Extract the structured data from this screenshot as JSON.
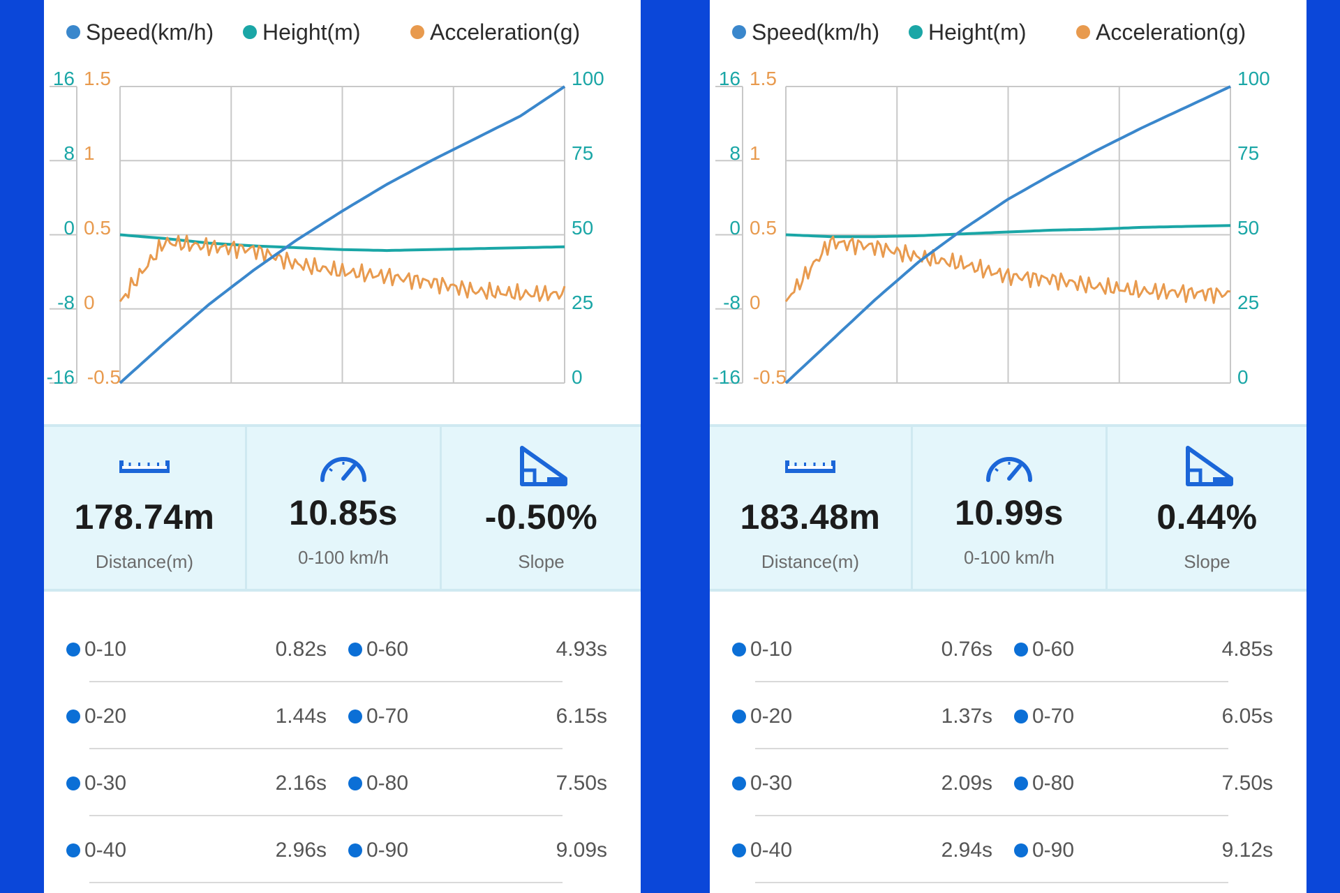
{
  "colors": {
    "background": "#0b47d9",
    "speed": "#3a87cc",
    "height": "#1aa6a6",
    "acceleration": "#e89a4e",
    "stats_bg": "#e4f6fb",
    "icon_blue": "#1b66d8",
    "split_dot": "#0b6fd6"
  },
  "panels": [
    {
      "legend": [
        {
          "label": "Speed(km/h)",
          "color": "#3a87cc"
        },
        {
          "label": "Height(m)",
          "color": "#1aa6a6"
        },
        {
          "label": "Acceleration(g)",
          "color": "#e89a4e"
        }
      ],
      "stats": [
        {
          "icon": "ruler-icon",
          "value": "178.74m",
          "label": "Distance(m)"
        },
        {
          "icon": "speedometer-icon",
          "value": "10.85s",
          "label": "0-100 km/h"
        },
        {
          "icon": "slope-icon",
          "value": "-0.50%",
          "label": "Slope"
        }
      ],
      "splits": [
        {
          "left_label": "0-10",
          "left_time": "0.82s",
          "right_label": "0-60",
          "right_time": "4.93s"
        },
        {
          "left_label": "0-20",
          "left_time": "1.44s",
          "right_label": "0-70",
          "right_time": "6.15s"
        },
        {
          "left_label": "0-30",
          "left_time": "2.16s",
          "right_label": "0-80",
          "right_time": "7.50s"
        },
        {
          "left_label": "0-40",
          "left_time": "2.96s",
          "right_label": "0-90",
          "right_time": "9.09s"
        }
      ]
    },
    {
      "legend": [
        {
          "label": "Speed(km/h)",
          "color": "#3a87cc"
        },
        {
          "label": "Height(m)",
          "color": "#1aa6a6"
        },
        {
          "label": "Acceleration(g)",
          "color": "#e89a4e"
        }
      ],
      "stats": [
        {
          "icon": "ruler-icon",
          "value": "183.48m",
          "label": "Distance(m)"
        },
        {
          "icon": "speedometer-icon",
          "value": "10.99s",
          "label": "0-100 km/h"
        },
        {
          "icon": "slope-icon",
          "value": "0.44%",
          "label": "Slope"
        }
      ],
      "splits": [
        {
          "left_label": "0-10",
          "left_time": "0.76s",
          "right_label": "0-60",
          "right_time": "4.85s"
        },
        {
          "left_label": "0-20",
          "left_time": "1.37s",
          "right_label": "0-70",
          "right_time": "6.05s"
        },
        {
          "left_label": "0-30",
          "left_time": "2.09s",
          "right_label": "0-80",
          "right_time": "7.50s"
        },
        {
          "left_label": "0-40",
          "left_time": "2.94s",
          "right_label": "0-90",
          "right_time": "9.12s"
        }
      ]
    }
  ],
  "chart_data": [
    {
      "type": "line",
      "title": "",
      "grid": true,
      "legend_position": "top",
      "axes": {
        "height_axis": {
          "ticks": [
            "16",
            "8",
            "0",
            "-8",
            "-16"
          ],
          "range": [
            -16,
            16
          ]
        },
        "acceleration_axis": {
          "ticks": [
            "1.5",
            "1",
            "0.5",
            "0",
            "-0.5"
          ],
          "range": [
            -0.5,
            1.5
          ]
        },
        "speed_axis": {
          "ticks": [
            "100",
            "75",
            "50",
            "25",
            "0"
          ],
          "range": [
            0,
            100
          ]
        }
      },
      "x": [
        0,
        0.1,
        0.2,
        0.3,
        0.4,
        0.5,
        0.6,
        0.7,
        0.8,
        0.9,
        1.0
      ],
      "series": [
        {
          "name": "Speed(km/h)",
          "axis": "speed_axis",
          "values": [
            0,
            13.5,
            26.5,
            38,
            48.5,
            58,
            67,
            75,
            82.5,
            90,
            100
          ]
        },
        {
          "name": "Height(m)",
          "axis": "height_axis",
          "values": [
            0,
            -0.4,
            -0.9,
            -1.2,
            -1.4,
            -1.6,
            -1.7,
            -1.6,
            -1.5,
            -1.4,
            -1.3
          ]
        },
        {
          "name": "Acceleration(g)",
          "axis": "acceleration_axis",
          "values": [
            0.05,
            0.45,
            0.42,
            0.4,
            0.3,
            0.25,
            0.22,
            0.18,
            0.12,
            0.1,
            0.1
          ]
        }
      ]
    },
    {
      "type": "line",
      "title": "",
      "grid": true,
      "legend_position": "top",
      "axes": {
        "height_axis": {
          "ticks": [
            "16",
            "8",
            "0",
            "-8",
            "-16"
          ],
          "range": [
            -16,
            16
          ]
        },
        "acceleration_axis": {
          "ticks": [
            "1.5",
            "1",
            "0.5",
            "0",
            "-0.5"
          ],
          "range": [
            -0.5,
            1.5
          ]
        },
        "speed_axis": {
          "ticks": [
            "100",
            "75",
            "50",
            "25",
            "0"
          ],
          "range": [
            0,
            100
          ]
        }
      },
      "x": [
        0,
        0.1,
        0.2,
        0.3,
        0.4,
        0.5,
        0.6,
        0.7,
        0.8,
        0.9,
        1.0
      ],
      "series": [
        {
          "name": "Speed(km/h)",
          "axis": "speed_axis",
          "values": [
            0,
            14,
            28,
            41,
            52,
            62,
            70.5,
            78.5,
            86,
            93,
            100
          ]
        },
        {
          "name": "Height(m)",
          "axis": "height_axis",
          "values": [
            0,
            -0.2,
            -0.2,
            -0.1,
            0.1,
            0.3,
            0.5,
            0.6,
            0.8,
            0.9,
            1.0
          ]
        },
        {
          "name": "Acceleration(g)",
          "axis": "acceleration_axis",
          "values": [
            0.05,
            0.45,
            0.42,
            0.35,
            0.3,
            0.22,
            0.2,
            0.15,
            0.12,
            0.11,
            0.1
          ]
        }
      ]
    }
  ]
}
